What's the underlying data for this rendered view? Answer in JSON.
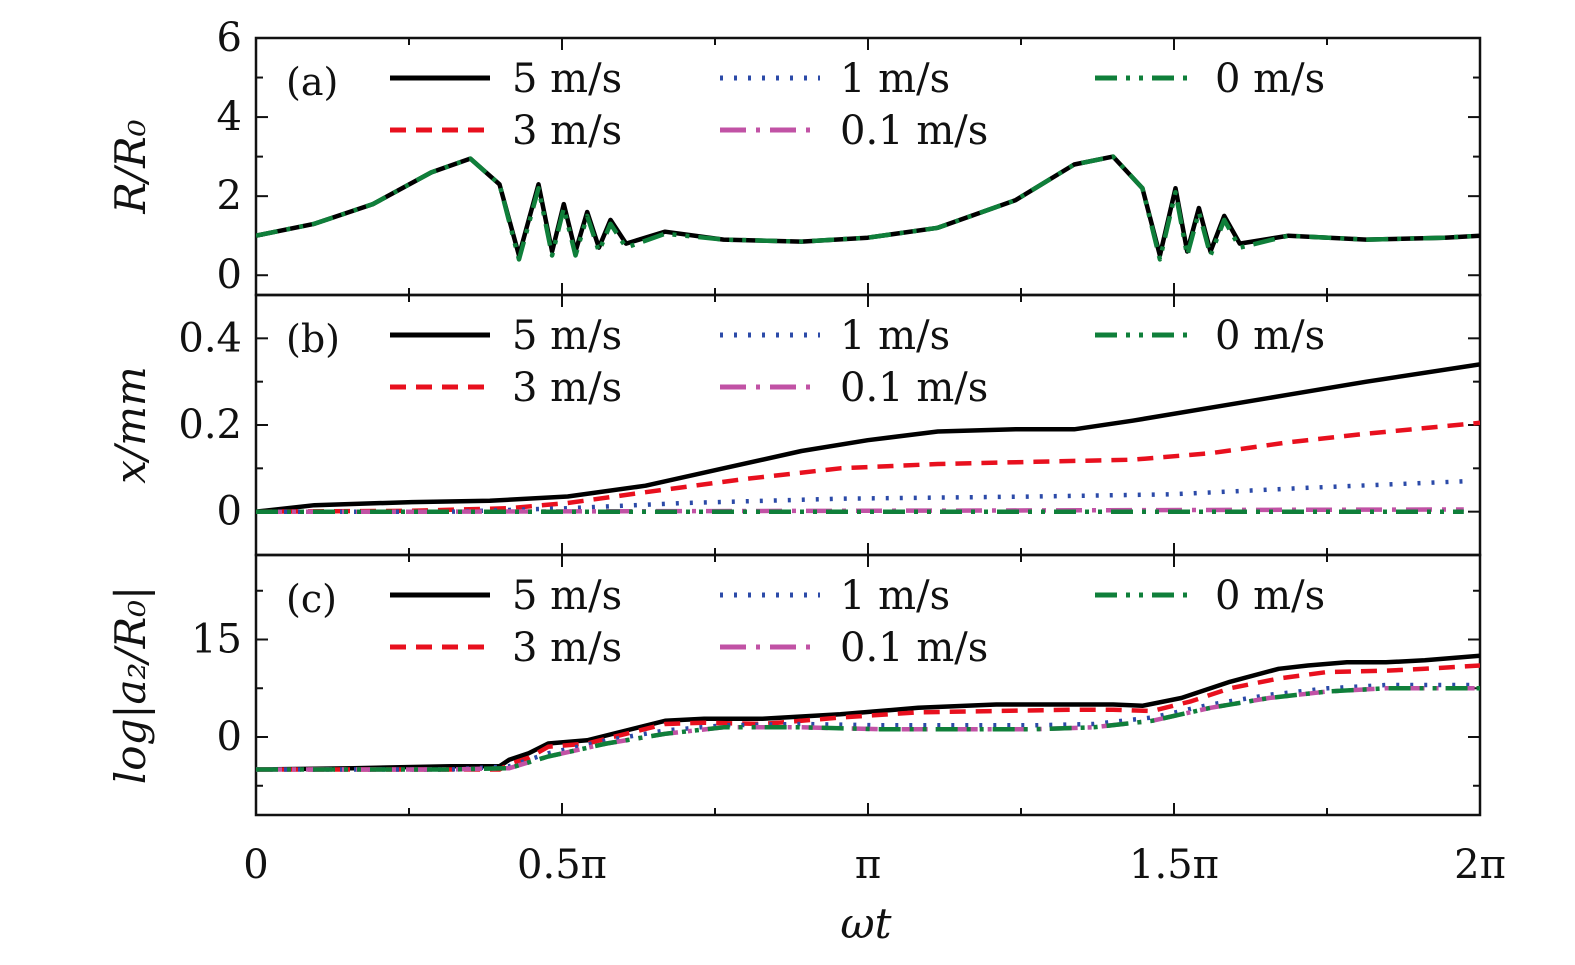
{
  "chart_data": {
    "type": "line",
    "x_axis": {
      "label": "ωt",
      "range": [
        0,
        6.2832
      ],
      "ticks": [
        {
          "value": 0,
          "label": "0"
        },
        {
          "value": 1.5708,
          "label": "0.5π"
        },
        {
          "value": 3.1416,
          "label": "π"
        },
        {
          "value": 4.7124,
          "label": "1.5π"
        },
        {
          "value": 6.2832,
          "label": "2π"
        }
      ],
      "minor_ticks": [
        0.7854,
        2.3562,
        3.927,
        5.4978
      ]
    },
    "series_styles": [
      {
        "name": "5 m/s",
        "color": "#000000",
        "dash": "solid"
      },
      {
        "name": "3 m/s",
        "color": "#e8101e",
        "dash": "dashed"
      },
      {
        "name": "1 m/s",
        "color": "#2b4aa8",
        "dash": "dotted"
      },
      {
        "name": "0.1 m/s",
        "color": "#c152a5",
        "dash": "dashdot-long"
      },
      {
        "name": "0 m/s",
        "color": "#0f7f3a",
        "dash": "dashdotdot"
      }
    ],
    "panels": [
      {
        "tag": "(a)",
        "ylabel": "R/R₀",
        "ylim": [
          -0.5,
          6
        ],
        "yticks": [
          0,
          2,
          4,
          6
        ],
        "minor_yticks": [
          1,
          3,
          5
        ],
        "series": [
          {
            "name": "5 m/s",
            "x": [
              0,
              0.3,
              0.6,
              0.9,
              1.1,
              1.25,
              1.35,
              1.45,
              1.52,
              1.58,
              1.64,
              1.7,
              1.76,
              1.82,
              1.9,
              2.1,
              2.4,
              2.8,
              3.14,
              3.5,
              3.9,
              4.2,
              4.4,
              4.55,
              4.64,
              4.72,
              4.78,
              4.84,
              4.9,
              4.97,
              5.05,
              5.3,
              5.7,
              6.1,
              6.2832
            ],
            "y": [
              1.0,
              1.3,
              1.8,
              2.6,
              2.95,
              2.3,
              0.5,
              2.3,
              0.6,
              1.8,
              0.6,
              1.6,
              0.7,
              1.4,
              0.8,
              1.1,
              0.9,
              0.85,
              0.95,
              1.2,
              1.9,
              2.8,
              3.0,
              2.2,
              0.5,
              2.2,
              0.6,
              1.7,
              0.6,
              1.5,
              0.8,
              1.0,
              0.9,
              0.95,
              1.0
            ]
          },
          {
            "name": "0 m/s",
            "x": [
              0,
              0.3,
              0.6,
              0.9,
              1.1,
              1.25,
              1.35,
              1.45,
              1.52,
              1.58,
              1.64,
              1.7,
              1.76,
              1.82,
              1.9,
              2.1,
              2.4,
              2.8,
              3.14,
              3.5,
              3.9,
              4.2,
              4.4,
              4.55,
              4.64,
              4.72,
              4.78,
              4.84,
              4.9,
              4.97,
              5.05,
              5.3,
              5.7,
              6.1,
              6.2832
            ],
            "y": [
              1.0,
              1.3,
              1.8,
              2.6,
              2.95,
              2.3,
              0.4,
              2.2,
              0.5,
              1.7,
              0.5,
              1.5,
              0.6,
              1.3,
              0.7,
              1.05,
              0.9,
              0.85,
              0.95,
              1.2,
              1.9,
              2.8,
              3.0,
              2.2,
              0.4,
              2.1,
              0.5,
              1.6,
              0.5,
              1.4,
              0.7,
              1.0,
              0.9,
              0.95,
              1.0
            ]
          }
        ]
      },
      {
        "tag": "(b)",
        "ylabel": "x/mm",
        "ylim": [
          -0.1,
          0.5
        ],
        "yticks": [
          0,
          0.2,
          0.4
        ],
        "yticklabels": [
          "0",
          "0.2",
          "0.4"
        ],
        "minor_yticks": [
          0.1,
          0.3
        ],
        "series": [
          {
            "name": "5 m/s",
            "x": [
              0,
              0.3,
              0.8,
              1.2,
              1.6,
              2.0,
              2.4,
              2.8,
              3.14,
              3.5,
              3.9,
              4.2,
              4.5,
              4.9,
              5.3,
              5.7,
              6.2832
            ],
            "y": [
              0.0,
              0.015,
              0.022,
              0.025,
              0.035,
              0.06,
              0.1,
              0.14,
              0.165,
              0.185,
              0.19,
              0.19,
              0.21,
              0.24,
              0.27,
              0.3,
              0.34
            ]
          },
          {
            "name": "3 m/s",
            "x": [
              0,
              0.8,
              1.3,
              1.6,
              2.0,
              2.5,
              3.0,
              3.5,
              4.0,
              4.5,
              4.9,
              5.3,
              5.7,
              6.2832
            ],
            "y": [
              0.0,
              0.002,
              0.008,
              0.02,
              0.045,
              0.075,
              0.1,
              0.11,
              0.115,
              0.12,
              0.135,
              0.16,
              0.18,
              0.205
            ]
          },
          {
            "name": "1 m/s",
            "x": [
              0,
              1.0,
              1.6,
              2.2,
              3.0,
              4.0,
              4.7,
              5.4,
              6.2
            ],
            "y": [
              0.0,
              0.0,
              0.008,
              0.02,
              0.03,
              0.035,
              0.04,
              0.055,
              0.07
            ]
          },
          {
            "name": "0.1 m/s",
            "x": [
              0,
              1.0,
              2.0,
              3.0,
              4.0,
              5.0,
              6.2
            ],
            "y": [
              0.0,
              0.0,
              0.001,
              0.002,
              0.003,
              0.004,
              0.005
            ]
          },
          {
            "name": "0 m/s",
            "x": [
              0,
              6.2
            ],
            "y": [
              0.0,
              0.0
            ]
          }
        ]
      },
      {
        "tag": "(c)",
        "ylabel": "log|a₂/R₀|",
        "ylim": [
          -12,
          28
        ],
        "yticks": [
          0,
          15
        ],
        "minor_yticks": [
          -7.5,
          7.5,
          22.5
        ],
        "series": [
          {
            "name": "5 m/s",
            "x": [
              0,
              0.5,
              1.0,
              1.25,
              1.3,
              1.4,
              1.5,
              1.7,
              1.9,
              2.1,
              2.3,
              2.6,
              3.0,
              3.4,
              3.8,
              4.2,
              4.4,
              4.55,
              4.75,
              5.0,
              5.25,
              5.4,
              5.6,
              5.8,
              6.0,
              6.2832
            ],
            "y": [
              -5,
              -4.8,
              -4.5,
              -4.5,
              -3.5,
              -2.5,
              -1.0,
              -0.5,
              1.0,
              2.5,
              2.8,
              2.8,
              3.5,
              4.5,
              5.0,
              5.0,
              5.0,
              4.8,
              6.0,
              8.5,
              10.5,
              11.0,
              11.5,
              11.5,
              11.8,
              12.5
            ]
          },
          {
            "name": "3 m/s",
            "x": [
              0,
              0.5,
              1.0,
              1.25,
              1.3,
              1.4,
              1.5,
              1.7,
              1.9,
              2.1,
              2.3,
              2.6,
              3.0,
              3.4,
              3.8,
              4.2,
              4.4,
              4.6,
              4.8,
              5.0,
              5.25,
              5.5,
              5.8,
              6.0,
              6.2832
            ],
            "y": [
              -5,
              -5,
              -5,
              -5,
              -4.2,
              -3.2,
              -1.5,
              -1.0,
              0.5,
              2.0,
              2.2,
              2.0,
              3.0,
              3.8,
              4.0,
              4.2,
              4.2,
              4.0,
              5.5,
              7.5,
              9.0,
              10.0,
              10.2,
              10.5,
              11.0
            ]
          },
          {
            "name": "1 m/s",
            "x": [
              0,
              1.0,
              1.3,
              1.5,
              1.8,
              2.1,
              2.4,
              2.8,
              3.2,
              3.6,
              4.0,
              4.3,
              4.6,
              4.9,
              5.2,
              5.5,
              5.8,
              6.2832
            ],
            "y": [
              -5,
              -5,
              -4.5,
              -2.5,
              -0.5,
              1.0,
              1.8,
              2.0,
              1.8,
              1.8,
              1.8,
              2.0,
              3.0,
              5.0,
              6.5,
              7.5,
              8.0,
              8.0
            ]
          },
          {
            "name": "0.1 m/s",
            "x": [
              0,
              1.0,
              1.3,
              1.5,
              1.8,
              2.1,
              2.4,
              2.8,
              3.2,
              3.6,
              4.0,
              4.3,
              4.6,
              4.9,
              5.2,
              5.5,
              5.8,
              6.2832
            ],
            "y": [
              -5,
              -5,
              -4.8,
              -3.0,
              -1.0,
              0.5,
              1.5,
              1.5,
              1.2,
              1.2,
              1.2,
              1.5,
              2.5,
              4.5,
              6.0,
              7.0,
              7.5,
              7.5
            ]
          },
          {
            "name": "0 m/s",
            "x": [
              0,
              1.0,
              1.3,
              1.5,
              1.8,
              2.1,
              2.4,
              2.8,
              3.2,
              3.6,
              4.0,
              4.3,
              4.6,
              4.9,
              5.2,
              5.5,
              5.8,
              6.2832
            ],
            "y": [
              -5,
              -5,
              -4.8,
              -3.0,
              -1.0,
              0.5,
              1.5,
              1.5,
              1.2,
              1.2,
              1.2,
              1.5,
              2.5,
              4.5,
              6.0,
              7.0,
              7.5,
              7.5
            ]
          }
        ]
      }
    ]
  }
}
